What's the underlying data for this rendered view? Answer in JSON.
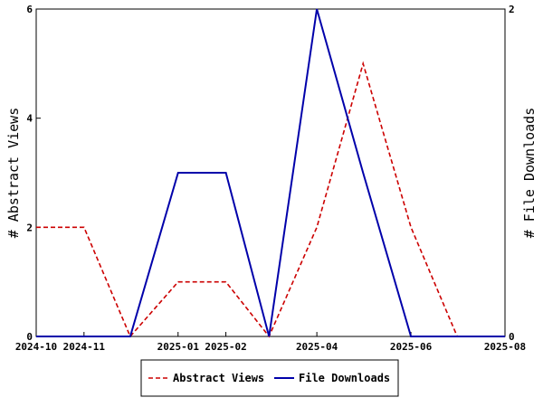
{
  "chart_data": {
    "type": "line",
    "x": [
      "2024-10",
      "2024-11",
      "2024-12",
      "2025-01",
      "2025-02",
      "2025-03",
      "2025-04",
      "2025-05",
      "2025-06",
      "2025-07",
      "2025-08"
    ],
    "x_tick_labels": [
      "2024-10",
      "2024-11",
      "2025-01",
      "2025-02",
      "2025-04",
      "2025-06",
      "2025-08"
    ],
    "series": [
      {
        "name": "Abstract Views",
        "axis": "left",
        "color": "#cc0000",
        "style": "dashed",
        "values": [
          2,
          2,
          0,
          1,
          1,
          0,
          2,
          5,
          2,
          0,
          0
        ]
      },
      {
        "name": "File Downloads",
        "axis": "right",
        "color": "#0000aa",
        "style": "solid",
        "values": [
          0,
          0,
          0,
          1,
          1,
          0,
          2,
          1,
          0,
          0,
          0
        ]
      }
    ],
    "ylabel_left": "# Abstract Views",
    "ylabel_right": "# File Downloads",
    "ylim_left": [
      0,
      6
    ],
    "ylim_right": [
      0,
      2
    ],
    "yticks_left": [
      "0",
      "2",
      "4",
      "6"
    ],
    "yticks_right": [
      "0",
      "2"
    ],
    "grid": false,
    "legend_placement": "bottom"
  }
}
